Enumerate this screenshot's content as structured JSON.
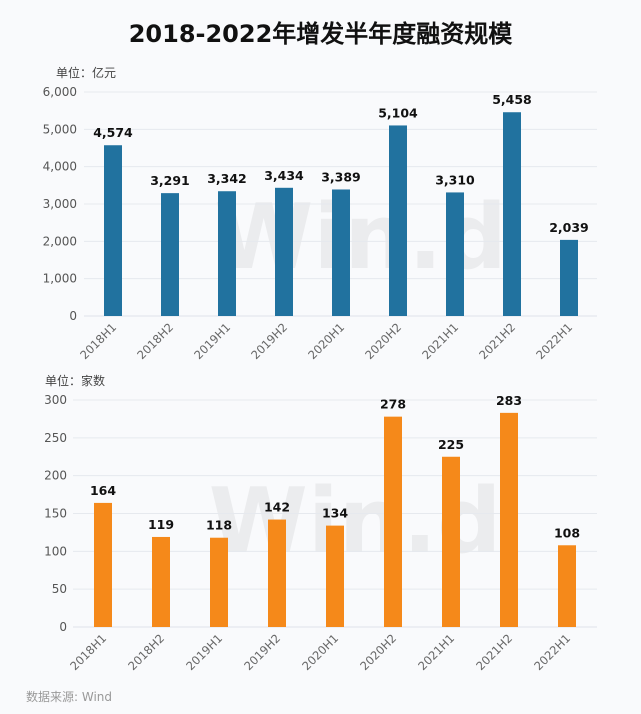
{
  "title": "2018-2022年增发半年度融资规模",
  "source": "数据来源: Wind",
  "watermark": "Win.d",
  "chart_data": [
    {
      "type": "bar",
      "unit_label": "单位：亿元",
      "categories": [
        "2018H1",
        "2018H2",
        "2019H1",
        "2019H2",
        "2020H1",
        "2020H2",
        "2021H1",
        "2021H2",
        "2022H1"
      ],
      "values": [
        4574,
        3291,
        3342,
        3434,
        3389,
        5104,
        3310,
        5458,
        2039
      ],
      "data_labels": [
        "4,574",
        "3,291",
        "3,342",
        "3,434",
        "3,389",
        "5,104",
        "3,310",
        "5,458",
        "2,039"
      ],
      "yticks": [
        "0",
        "1,000",
        "2,000",
        "3,000",
        "4,000",
        "5,000",
        "6,000"
      ],
      "ylim": [
        0,
        6000
      ],
      "grid": true,
      "color": "#21729f"
    },
    {
      "type": "bar",
      "unit_label": "单位：家数",
      "categories": [
        "2018H1",
        "2018H2",
        "2019H1",
        "2019H2",
        "2020H1",
        "2020H2",
        "2021H1",
        "2021H2",
        "2022H1"
      ],
      "values": [
        164,
        119,
        118,
        142,
        134,
        278,
        225,
        283,
        108
      ],
      "data_labels": [
        "164",
        "119",
        "118",
        "142",
        "134",
        "278",
        "225",
        "283",
        "108"
      ],
      "yticks": [
        "0",
        "50",
        "100",
        "150",
        "200",
        "250",
        "300"
      ],
      "ylim": [
        0,
        300
      ],
      "grid": true,
      "color": "#f5891a"
    }
  ]
}
